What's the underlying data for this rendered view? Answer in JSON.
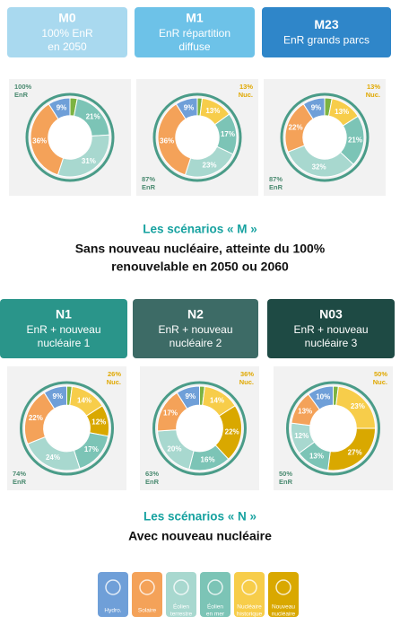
{
  "chart_data": [
    {
      "type": "pie",
      "title": "M0",
      "subtitle": [
        "100% EnR",
        "en 2050"
      ],
      "header_color": "#a9d9ef",
      "values": [
        9,
        36,
        31,
        21,
        0,
        0,
        3
      ],
      "value_labels": [
        "9%",
        "36%",
        "31%",
        "21%",
        null,
        null,
        null
      ],
      "enr_label": [
        "100%",
        "EnR"
      ]
    },
    {
      "type": "pie",
      "title": "M1",
      "subtitle": [
        "EnR répartition",
        "diffuse"
      ],
      "header_color": "#6dc2e8",
      "values": [
        9,
        36,
        23,
        17,
        13,
        0,
        2
      ],
      "value_labels": [
        "9%",
        "36%",
        "23%",
        "17%",
        "13%",
        null,
        null
      ],
      "enr_label": [
        "87%",
        "EnR"
      ],
      "nuc_label": [
        "13%",
        "Nuc."
      ]
    },
    {
      "type": "pie",
      "title": "M23",
      "subtitle": [
        "EnR grands parcs"
      ],
      "header_color": "#2f86c9",
      "values": [
        9,
        22,
        32,
        21,
        13,
        0,
        3
      ],
      "value_labels": [
        "9%",
        "22%",
        "32%",
        "21%",
        "13%",
        null,
        null
      ],
      "enr_label": [
        "87%",
        "EnR"
      ],
      "nuc_label": [
        "13%",
        "Nuc."
      ]
    },
    {
      "type": "pie",
      "title": "N1",
      "subtitle": [
        "EnR + nouveau",
        "nucléaire 1"
      ],
      "header_color": "#2a958a",
      "values": [
        9,
        22,
        24,
        17,
        14,
        12,
        2
      ],
      "value_labels": [
        "9%",
        "22%",
        "24%",
        "17%",
        "14%",
        "12%",
        null
      ],
      "enr_label": [
        "74%",
        "EnR"
      ],
      "nuc_label": [
        "26%",
        "Nuc."
      ]
    },
    {
      "type": "pie",
      "title": "N2",
      "subtitle": [
        "EnR + nouveau",
        "nucléaire 2"
      ],
      "header_color": "#3d6b66",
      "values": [
        9,
        17,
        20,
        16,
        14,
        22,
        2
      ],
      "value_labels": [
        "9%",
        "17%",
        "20%",
        "16%",
        "14%",
        "22%",
        null
      ],
      "enr_label": [
        "63%",
        "EnR"
      ],
      "nuc_label": [
        "36%",
        "Nuc."
      ]
    },
    {
      "type": "pie",
      "title": "N03",
      "subtitle": [
        "EnR + nouveau",
        "nucléaire 3"
      ],
      "header_color": "#1e4a44",
      "values": [
        10,
        13,
        12,
        13,
        23,
        27,
        2
      ],
      "value_labels": [
        "10%",
        "13%",
        "12%",
        "13%",
        "23%",
        "27%",
        null
      ],
      "enr_label": [
        "50%",
        "EnR"
      ],
      "nuc_label": [
        "50%",
        "Nuc."
      ]
    }
  ],
  "legend": [
    {
      "name": [
        "Hydro."
      ],
      "color": "#6f9fd8"
    },
    {
      "name": [
        "Solaire"
      ],
      "color": "#f4a259"
    },
    {
      "name": [
        "Éolien",
        "terrestre"
      ],
      "color": "#a8d8cf"
    },
    {
      "name": [
        "Éolien",
        "en mer"
      ],
      "color": "#7cc4b6"
    },
    {
      "name": [
        "Nucléaire",
        "historique"
      ],
      "color": "#f7cd4a"
    },
    {
      "name": [
        "Nouveau",
        "nucléaire"
      ],
      "color": "#d9a800"
    }
  ],
  "other_color": "#7cb342",
  "sections": [
    {
      "title": "Les scénarios « M »",
      "subtitle": [
        "Sans nouveau nucléaire, atteinte du 100%",
        "renouvelable en 2050 ou 2060"
      ]
    },
    {
      "title": "Les scénarios « N »",
      "subtitle": [
        "Avec nouveau nucléaire"
      ]
    }
  ]
}
